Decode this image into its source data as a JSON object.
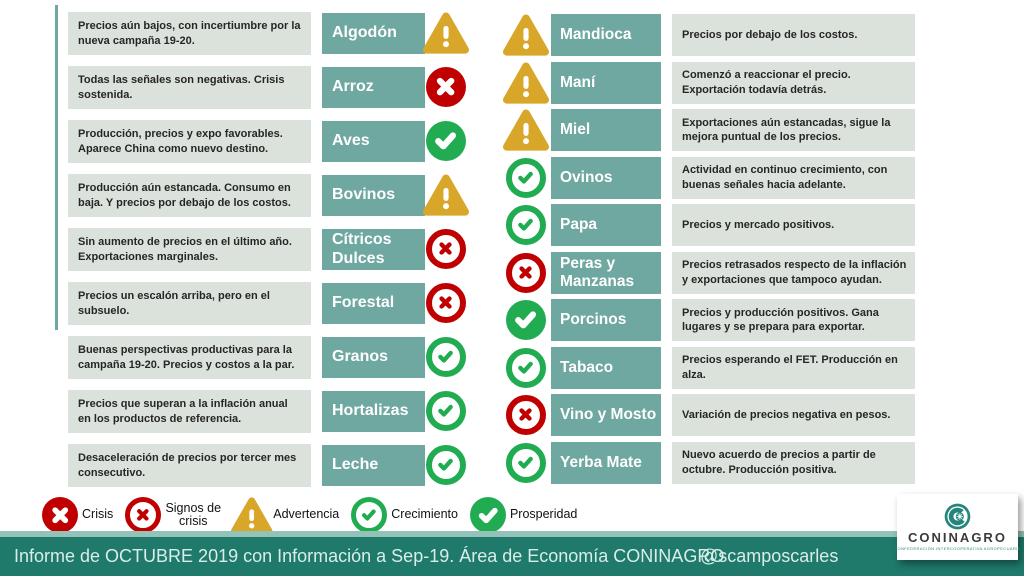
{
  "colors": {
    "teal_box": "#6FA7A1",
    "desc_bg": "#DBE2DC",
    "footer_bar": "#1F7A6C",
    "crisis_red": "#C00000",
    "growth_green": "#22AC52",
    "warning_yellow": "#D8A628"
  },
  "left_rows": [
    {
      "desc": "Precios aún bajos, con incertiumbre por la nueva campaña 19-20.",
      "product": "Algodón",
      "status": "advertencia"
    },
    {
      "desc": "Todas las señales son negativas. Crisis sostenida.",
      "product": "Arroz",
      "status": "crisis"
    },
    {
      "desc": "Producción, precios y expo favorables. Aparece China como nuevo destino.",
      "product": "Aves",
      "status": "prosperidad"
    },
    {
      "desc": "Producción aún estancada. Consumo en baja. Y precios por debajo de los costos.",
      "product": "Bovinos",
      "status": "advertencia"
    },
    {
      "desc": "Sin aumento de precios en el último año. Exportaciones marginales.",
      "product": "Cítricos Dulces",
      "status": "signos"
    },
    {
      "desc": "Precios un escalón arriba, pero en el subsuelo.",
      "product": "Forestal",
      "status": "signos"
    },
    {
      "desc": "Buenas perspectivas productivas para la campaña 19-20. Precios y costos a la par.",
      "product": "Granos",
      "status": "crecimiento"
    },
    {
      "desc": "Precios que superan a la inflación anual en los productos de referencia.",
      "product": "Hortalizas",
      "status": "crecimiento"
    },
    {
      "desc": "Desaceleración de precios por tercer mes consecutivo.",
      "product": "Leche",
      "status": "crecimiento"
    }
  ],
  "right_rows": [
    {
      "product": "Mandioca",
      "status": "advertencia",
      "desc": "Precios por debajo de los costos."
    },
    {
      "product": "Maní",
      "status": "advertencia",
      "desc": "Comenzó a reaccionar el precio. Exportación todavía detrás."
    },
    {
      "product": "Miel",
      "status": "advertencia",
      "desc": "Exportaciones aún estancadas, sigue la mejora puntual de los precios."
    },
    {
      "product": "Ovinos",
      "status": "crecimiento",
      "desc": "Actividad en continuo crecimiento, con buenas señales hacia adelante."
    },
    {
      "product": "Papa",
      "status": "crecimiento",
      "desc": "Precios y mercado positivos."
    },
    {
      "product": "Peras y Manzanas",
      "status": "signos",
      "desc": "Precios retrasados respecto de la inflación y exportaciones que tampoco ayudan."
    },
    {
      "product": "Porcinos",
      "status": "prosperidad",
      "desc": "Precios y producción positivos. Gana lugares y se prepara para exportar."
    },
    {
      "product": "Tabaco",
      "status": "crecimiento",
      "desc": "Precios esperando el FET. Producción en alza."
    },
    {
      "product": "Vino y Mosto",
      "status": "signos",
      "desc": "Variación de precios negativa en pesos."
    },
    {
      "product": "Yerba Mate",
      "status": "crecimiento",
      "desc": "Nuevo acuerdo de precios a partir de octubre. Producción positiva."
    }
  ],
  "legend": [
    {
      "label": "Crisis",
      "status": "crisis"
    },
    {
      "label": "Signos de crisis",
      "status": "signos"
    },
    {
      "label": "Advertencia",
      "status": "advertencia"
    },
    {
      "label": "Crecimiento",
      "status": "crecimiento"
    },
    {
      "label": "Prosperidad",
      "status": "prosperidad"
    }
  ],
  "footer": {
    "report_text": "Informe de OCTUBRE 2019 con Información a Sep-19. Área de Economía CONINAGRO",
    "handle": "@scamposcarles"
  },
  "logo": {
    "name": "CONINAGRO",
    "tagline": "CONFEDERACIÓN INTERCOOPERATIVA AGROPECUARIA"
  }
}
